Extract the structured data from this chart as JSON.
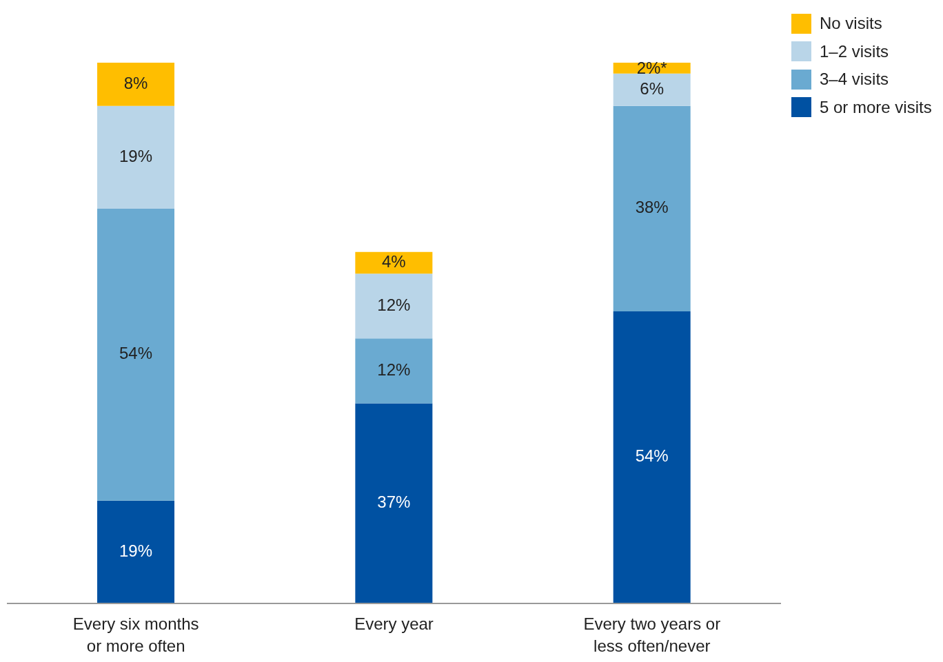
{
  "chart_data": {
    "type": "bar",
    "stacked": true,
    "categories": [
      "Every six months or more often",
      "Every year",
      "Every two years or less often/never"
    ],
    "series": [
      {
        "name": "5 or more visits",
        "color": "#0051a2",
        "values": [
          19,
          37,
          54
        ],
        "value_labels": [
          "19%",
          "37%",
          "54%"
        ]
      },
      {
        "name": "3–4 visits",
        "color": "#6aaad1",
        "values": [
          54,
          12,
          38
        ],
        "value_labels": [
          "54%",
          "12%",
          "38%"
        ]
      },
      {
        "name": "1–2 visits",
        "color": "#b9d5e8",
        "values": [
          19,
          12,
          6
        ],
        "value_labels": [
          "19%",
          "12%",
          "6%"
        ]
      },
      {
        "name": "No visits",
        "color": "#ffbe00",
        "values": [
          8,
          4,
          2
        ],
        "value_labels": [
          "8%",
          "4%",
          "2%*"
        ]
      }
    ],
    "legend": "top right",
    "grid": false
  }
}
